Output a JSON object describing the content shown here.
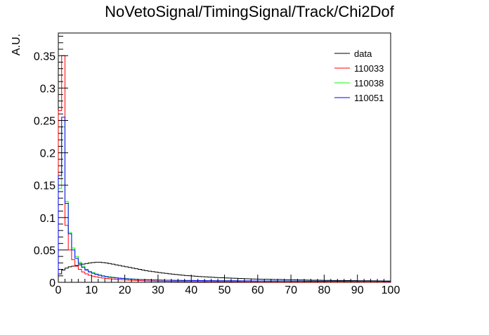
{
  "chart_data": {
    "type": "line",
    "title": "NoVetoSignal/TimingSignal/Track/Chi2Dof",
    "xlabel": "",
    "ylabel": "A.U.",
    "xlim": [
      0,
      100
    ],
    "ylim": [
      0,
      0.385
    ],
    "xticks": [
      0,
      10,
      20,
      30,
      40,
      50,
      60,
      70,
      80,
      90,
      100
    ],
    "yticks": [
      0,
      0.05,
      0.1,
      0.15,
      0.2,
      0.25,
      0.3,
      0.35
    ],
    "xtick_labels": [
      "0",
      "10",
      "20",
      "30",
      "40",
      "50",
      "60",
      "70",
      "80",
      "90",
      "100"
    ],
    "ytick_labels": [
      "0",
      "0.05",
      "0.1",
      "0.15",
      "0.2",
      "0.25",
      "0.3",
      "0.35"
    ],
    "legend_position": "top-right",
    "bin_width": 1,
    "series": [
      {
        "name": "data",
        "color": "#000000",
        "values": [
          0.013,
          0.019,
          0.022,
          0.024,
          0.025,
          0.026,
          0.027,
          0.028,
          0.029,
          0.03,
          0.0305,
          0.031,
          0.031,
          0.0305,
          0.03,
          0.029,
          0.028,
          0.027,
          0.026,
          0.025,
          0.024,
          0.023,
          0.022,
          0.021,
          0.02,
          0.019,
          0.018,
          0.0172,
          0.0165,
          0.0158,
          0.015,
          0.0144,
          0.0138,
          0.0132,
          0.0126,
          0.012,
          0.0115,
          0.011,
          0.0105,
          0.0101,
          0.0097,
          0.0093,
          0.009,
          0.0087,
          0.0084,
          0.0081,
          0.0078,
          0.0075,
          0.0072,
          0.007,
          0.0068,
          0.0066,
          0.0064,
          0.0062,
          0.006,
          0.0058,
          0.0056,
          0.0054,
          0.0052,
          0.005,
          0.0049,
          0.0048,
          0.0047,
          0.0046,
          0.0045,
          0.0044,
          0.0043,
          0.0042,
          0.0041,
          0.004,
          0.0039,
          0.0038,
          0.0037,
          0.0036,
          0.0035,
          0.0034,
          0.0033,
          0.0032,
          0.0032,
          0.0031,
          0.003,
          0.003,
          0.0029,
          0.0029,
          0.0028,
          0.0028,
          0.0027,
          0.0027,
          0.0026,
          0.0026,
          0.0025,
          0.0025,
          0.0024,
          0.0024,
          0.0023,
          0.0023,
          0.0022,
          0.0022,
          0.0021,
          0.0021
        ]
      },
      {
        "name": "110033",
        "color": "#ff0000",
        "values": [
          0.265,
          0.35,
          0.088,
          0.05,
          0.035,
          0.025,
          0.02,
          0.016,
          0.013,
          0.011,
          0.0095,
          0.0085,
          0.0075,
          0.0067,
          0.006,
          0.0055,
          0.005,
          0.0046,
          0.0042,
          0.0039,
          0.0036,
          0.0033,
          0.003,
          0.0028,
          0.0026,
          0.0024,
          0.0022,
          0.0021,
          0.002,
          0.0019,
          0.0018,
          0.0017,
          0.0016,
          0.0015,
          0.0015,
          0.0014,
          0.0014,
          0.0013,
          0.0013,
          0.0012,
          0.0012,
          0.0012,
          0.0011,
          0.0011,
          0.0011,
          0.001,
          0.001,
          0.001,
          0.001,
          0.001,
          0.0009,
          0.0009,
          0.0009,
          0.0009,
          0.0009,
          0.0008,
          0.0008,
          0.0008,
          0.0008,
          0.0008,
          0.0007,
          0.0007,
          0.0007,
          0.0007,
          0.0007,
          0.0007,
          0.0006,
          0.0006,
          0.0006,
          0.0006,
          0.0006,
          0.0006,
          0.0006,
          0.0005,
          0.0005,
          0.0005,
          0.0005,
          0.0005,
          0.0005,
          0.0005,
          0.0005,
          0.0004,
          0.0004,
          0.0004,
          0.0004,
          0.0004,
          0.0004,
          0.0004,
          0.0004,
          0.0004,
          0.0004,
          0.0003,
          0.0003,
          0.0003,
          0.0003,
          0.0003,
          0.0003,
          0.0003,
          0.0003,
          0.0003
        ]
      },
      {
        "name": "110038",
        "color": "#00ff00",
        "values": [
          0.145,
          0.24,
          0.125,
          0.077,
          0.053,
          0.04,
          0.031,
          0.025,
          0.02,
          0.017,
          0.015,
          0.013,
          0.0115,
          0.0102,
          0.0092,
          0.0084,
          0.0078,
          0.0072,
          0.0067,
          0.0062,
          0.0058,
          0.0054,
          0.0051,
          0.0048,
          0.0045,
          0.0043,
          0.0041,
          0.0039,
          0.0037,
          0.0036,
          0.0035,
          0.0034,
          0.0033,
          0.0032,
          0.0031,
          0.003,
          0.003,
          0.0029,
          0.0029,
          0.0028,
          0.0028,
          0.0027,
          0.0027,
          0.0026,
          0.0026,
          0.0026,
          0.0025,
          0.0025,
          0.0025,
          0.0024,
          0.0024,
          0.0024,
          0.0023,
          0.0023,
          0.0023,
          0.0022,
          0.0022,
          0.0022,
          0.0021,
          0.0021,
          0.0021,
          0.002,
          0.002,
          0.002,
          0.002,
          0.0019,
          0.0019,
          0.0019,
          0.0019,
          0.0018,
          0.0018,
          0.0018,
          0.0018,
          0.0017,
          0.0017,
          0.0017,
          0.0017,
          0.0016,
          0.0016,
          0.0016,
          0.0016,
          0.0015,
          0.0015,
          0.0015,
          0.0015,
          0.0014,
          0.0014,
          0.0014,
          0.0014,
          0.0013,
          0.0013,
          0.0013,
          0.0013,
          0.0012,
          0.0012,
          0.0012,
          0.0012,
          0.0011,
          0.0011,
          0.0011
        ]
      },
      {
        "name": "110051",
        "color": "#0000ff",
        "values": [
          0.165,
          0.255,
          0.122,
          0.075,
          0.05,
          0.037,
          0.029,
          0.023,
          0.019,
          0.016,
          0.014,
          0.0122,
          0.0108,
          0.0096,
          0.0087,
          0.0079,
          0.0073,
          0.0068,
          0.0063,
          0.0059,
          0.0055,
          0.0052,
          0.0049,
          0.0046,
          0.0044,
          0.0042,
          0.004,
          0.0038,
          0.0037,
          0.0036,
          0.0035,
          0.0034,
          0.0033,
          0.0032,
          0.0031,
          0.003,
          0.003,
          0.0029,
          0.0029,
          0.0028,
          0.0028,
          0.0027,
          0.0027,
          0.0027,
          0.0026,
          0.0026,
          0.0026,
          0.0025,
          0.0025,
          0.0025,
          0.0024,
          0.0024,
          0.0024,
          0.0024,
          0.0023,
          0.0023,
          0.0023,
          0.0023,
          0.0022,
          0.0022,
          0.0022,
          0.0022,
          0.0021,
          0.0021,
          0.0021,
          0.0021,
          0.002,
          0.002,
          0.002,
          0.002,
          0.0019,
          0.0019,
          0.0019,
          0.0019,
          0.0018,
          0.0018,
          0.0018,
          0.0018,
          0.0017,
          0.0017,
          0.0017,
          0.0017,
          0.0016,
          0.0016,
          0.0016,
          0.0016,
          0.0015,
          0.0015,
          0.0015,
          0.0015,
          0.0014,
          0.0014,
          0.0014,
          0.0014,
          0.0013,
          0.0013,
          0.0013,
          0.0013,
          0.0012,
          0.0012
        ]
      }
    ]
  }
}
